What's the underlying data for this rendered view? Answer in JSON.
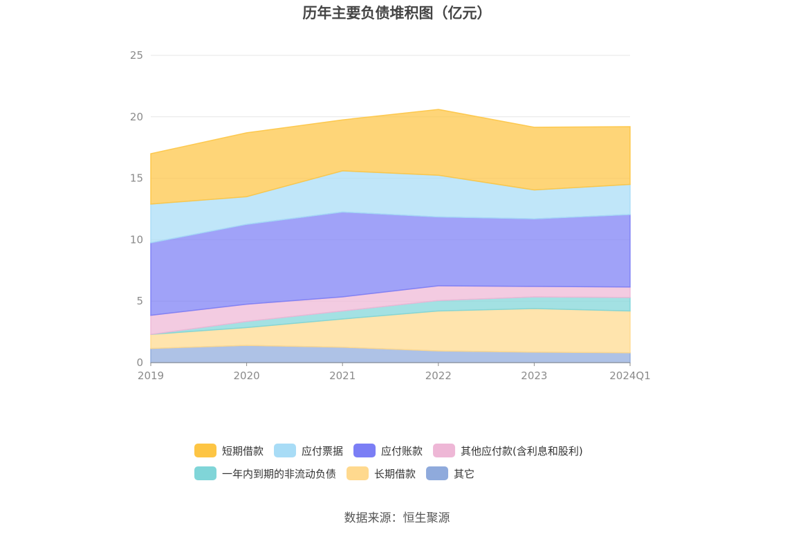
{
  "chart_data": {
    "type": "area",
    "stacked": true,
    "title": "历年主要负债堆积图（亿元）",
    "source": "数据来源：恒生聚源",
    "categories": [
      "2019",
      "2020",
      "2021",
      "2022",
      "2023",
      "2024Q1"
    ],
    "ylim": [
      0,
      25
    ],
    "yticks": [
      "0",
      "5",
      "10",
      "15",
      "20",
      "25"
    ],
    "grid": true,
    "legend_position": "bottom",
    "series": [
      {
        "name": "其它",
        "color": "#8FAADC",
        "values": [
          1.15,
          1.4,
          1.25,
          0.95,
          0.85,
          0.8
        ]
      },
      {
        "name": "长期借款",
        "color": "#FFD98E",
        "values": [
          1.15,
          1.45,
          2.3,
          3.25,
          3.55,
          3.4
        ]
      },
      {
        "name": "一年内到期的非流动负债",
        "color": "#80D5D8",
        "values": [
          0.0,
          0.5,
          0.65,
          0.85,
          0.95,
          1.1
        ]
      },
      {
        "name": "其他应付款(含利息和股利)",
        "color": "#EEB7D6",
        "values": [
          1.55,
          1.4,
          1.15,
          1.2,
          0.85,
          0.85
        ]
      },
      {
        "name": "应付账款",
        "color": "#7B7EF5",
        "values": [
          5.9,
          6.5,
          6.9,
          5.6,
          5.5,
          5.9
        ]
      },
      {
        "name": "应付票据",
        "color": "#A8DCF6",
        "values": [
          3.15,
          2.25,
          3.35,
          3.4,
          2.35,
          2.45
        ]
      },
      {
        "name": "短期借款",
        "color": "#FDC544",
        "values": [
          4.1,
          5.2,
          4.15,
          5.35,
          5.1,
          4.7
        ]
      }
    ],
    "legend_order": [
      "短期借款",
      "应付票据",
      "应付账款",
      "其他应付款(含利息和股利)",
      "一年内到期的非流动负债",
      "长期借款",
      "其它"
    ]
  }
}
